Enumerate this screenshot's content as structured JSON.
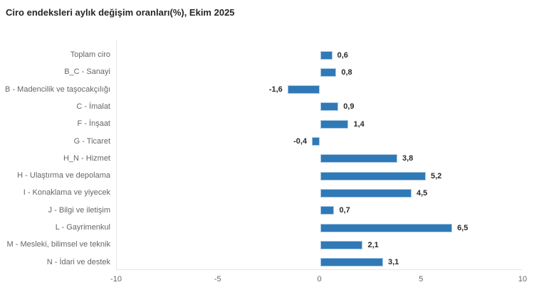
{
  "chart_data": {
    "type": "bar",
    "orientation": "horizontal",
    "title": "Ciro endeksleri aylık değişim oranları(%), Ekim 2025",
    "categories": [
      "Toplam ciro",
      "B_C - Sanayi",
      "B - Madencilik ve taşocakçılığı",
      "C - İmalat",
      "F - İnşaat",
      "G - Ticaret",
      "H_N - Hizmet",
      "H - Ulaştırma ve depolama",
      "I - Konaklama ve yiyecek",
      "J - Bilgi ve iletişim",
      "L - Gayrimenkul",
      "M - Mesleki, bilimsel ve teknik",
      "N - İdari ve destek"
    ],
    "values": [
      0.6,
      0.8,
      -1.6,
      0.9,
      1.4,
      -0.4,
      3.8,
      5.2,
      4.5,
      0.7,
      6.5,
      2.1,
      3.1
    ],
    "value_labels": [
      "0,6",
      "0,8",
      "-1,6",
      "0,9",
      "1,4",
      "-0,4",
      "3,8",
      "5,2",
      "4,5",
      "0,7",
      "6,5",
      "2,1",
      "3,1"
    ],
    "xlim": [
      -10,
      10
    ],
    "x_ticks": [
      {
        "value": -10,
        "label": "-10"
      },
      {
        "value": -5,
        "label": "-5"
      },
      {
        "value": 0,
        "label": "0"
      },
      {
        "value": 5,
        "label": "5"
      },
      {
        "value": 10,
        "label": "10"
      }
    ],
    "grid": false,
    "legend": false,
    "colors": {
      "bar_fill": "#2f79b7",
      "bar_border": "#a9c8e4",
      "axis_line": "#e6e6e6",
      "category_label": "#666666",
      "tick_label": "#666666",
      "value_label": "#2b2b2b",
      "title": "#262626"
    }
  }
}
